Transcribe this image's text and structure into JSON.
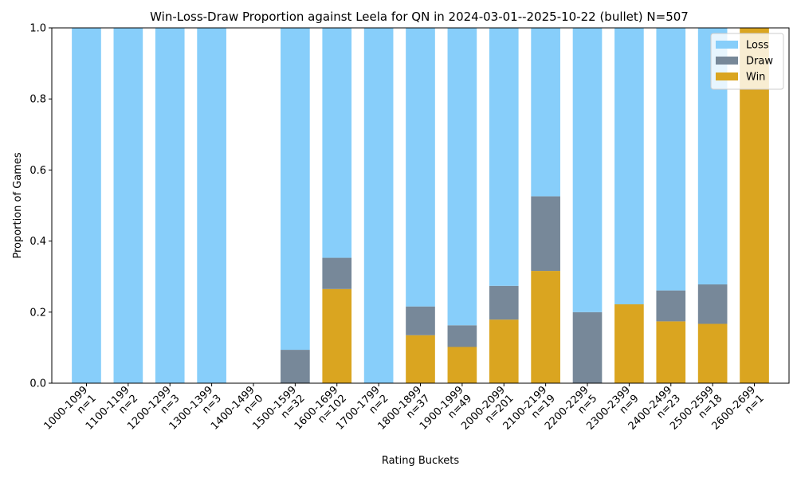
{
  "chart_data": {
    "type": "bar",
    "stacked": true,
    "title": "Win-Loss-Draw Proportion against Leela for QN in 2024-03-01--2025-10-22 (bullet) N=507",
    "xlabel": "Rating Buckets",
    "ylabel": "Proportion of Games",
    "ylim": [
      0,
      1
    ],
    "yticks": [
      "0.0",
      "0.2",
      "0.4",
      "0.6",
      "0.8",
      "1.0"
    ],
    "categories": [
      "1000-1099",
      "1100-1199",
      "1200-1299",
      "1300-1399",
      "1400-1499",
      "1500-1599",
      "1600-1699",
      "1700-1799",
      "1800-1899",
      "1900-1999",
      "2000-2099",
      "2100-2199",
      "2200-2299",
      "2300-2399",
      "2400-2499",
      "2500-2599",
      "2600-2699"
    ],
    "counts": [
      "n=1",
      "n=2",
      "n=3",
      "n=3",
      "n=0",
      "n=32",
      "n=102",
      "n=2",
      "n=37",
      "n=49",
      "n=201",
      "n=19",
      "n=5",
      "n=9",
      "n=23",
      "n=18",
      "n=1"
    ],
    "series": [
      {
        "name": "Win",
        "color": "#DAA520",
        "values": [
          0,
          0,
          0,
          0,
          0,
          0,
          0.265,
          0,
          0.135,
          0.102,
          0.179,
          0.316,
          0,
          0.222,
          0.174,
          0.167,
          1.0
        ]
      },
      {
        "name": "Draw",
        "color": "#778899",
        "values": [
          0,
          0,
          0,
          0,
          0,
          0.094,
          0.088,
          0,
          0.081,
          0.061,
          0.095,
          0.21,
          0.2,
          0,
          0.087,
          0.111,
          0
        ]
      },
      {
        "name": "Loss",
        "color": "#87CEFA",
        "values": [
          1.0,
          1.0,
          1.0,
          1.0,
          0,
          0.906,
          0.647,
          1.0,
          0.784,
          0.837,
          0.726,
          0.474,
          0.8,
          0.778,
          0.739,
          0.722,
          0
        ]
      }
    ],
    "legend": {
      "position": "top-right",
      "entries": [
        "Loss",
        "Draw",
        "Win"
      ]
    }
  }
}
